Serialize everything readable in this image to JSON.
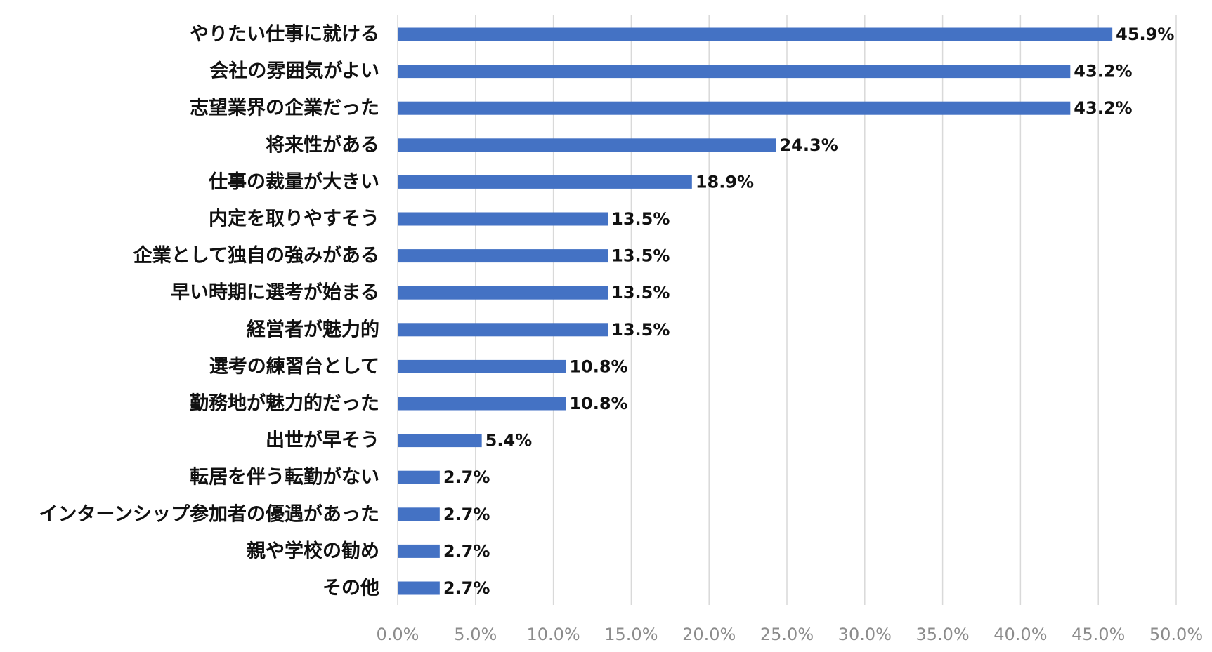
{
  "chart_data": {
    "type": "bar",
    "orientation": "horizontal",
    "categories": [
      "やりたい仕事に就ける",
      "会社の雰囲気がよい",
      "志望業界の企業だった",
      "将来性がある",
      "仕事の裁量が大きい",
      "内定を取りやすそう",
      "企業として独自の強みがある",
      "早い時期に選考が始まる",
      "経営者が魅力的",
      "選考の練習台として",
      "勤務地が魅力的だった",
      "出世が早そう",
      "転居を伴う転勤がない",
      "インターンシップ参加者の優遇があった",
      "親や学校の勧め",
      "その他"
    ],
    "values": [
      45.9,
      43.2,
      43.2,
      24.3,
      18.9,
      13.5,
      13.5,
      13.5,
      13.5,
      10.8,
      10.8,
      5.4,
      2.7,
      2.7,
      2.7,
      2.7
    ],
    "value_labels": [
      "45.9%",
      "43.2%",
      "43.2%",
      "24.3%",
      "18.9%",
      "13.5%",
      "13.5%",
      "13.5%",
      "13.5%",
      "10.8%",
      "10.8%",
      "5.4%",
      "2.7%",
      "2.7%",
      "2.7%",
      "2.7%"
    ],
    "xlim": [
      0,
      50
    ],
    "x_ticks": [
      0,
      5,
      10,
      15,
      20,
      25,
      30,
      35,
      40,
      45,
      50
    ],
    "x_tick_labels": [
      "0.0%",
      "5.0%",
      "10.0%",
      "15.0%",
      "20.0%",
      "25.0%",
      "30.0%",
      "35.0%",
      "40.0%",
      "45.0%",
      "50.0%"
    ],
    "grid": true,
    "legend": "none",
    "bar_color": "#4472c4",
    "title": "",
    "xlabel": "",
    "ylabel": ""
  }
}
